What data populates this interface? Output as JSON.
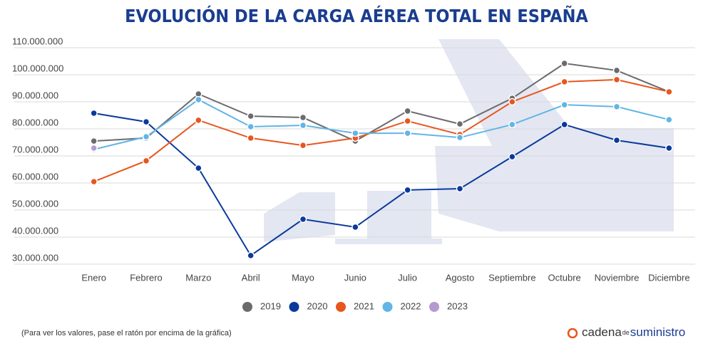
{
  "chart_data": {
    "type": "line",
    "title": "EVOLUCIÓN DE LA CARGA AÉREA TOTAL EN ESPAÑA",
    "categories": [
      "Enero",
      "Febrero",
      "Marzo",
      "Abril",
      "Mayo",
      "Junio",
      "Julio",
      "Agosto",
      "Septiembre",
      "Octubre",
      "Noviembre",
      "Diciembre"
    ],
    "series": [
      {
        "name": "2019",
        "color": "#6b6b6e",
        "values": [
          75500000,
          76600000,
          92900000,
          84700000,
          84200000,
          75500000,
          86600000,
          81800000,
          91300000,
          104200000,
          101600000,
          93700000
        ]
      },
      {
        "name": "2020",
        "color": "#0b3a9b",
        "values": [
          85800000,
          82600000,
          65500000,
          33200000,
          46600000,
          43700000,
          57400000,
          57900000,
          69700000,
          81600000,
          75800000,
          72900000
        ]
      },
      {
        "name": "2021",
        "color": "#e8561e",
        "values": [
          60500000,
          68200000,
          83200000,
          76600000,
          73900000,
          76600000,
          82900000,
          77900000,
          90000000,
          97400000,
          98200000,
          93700000
        ]
      },
      {
        "name": "2022",
        "color": "#62b5e5",
        "values": [
          72400000,
          77100000,
          90800000,
          80800000,
          81300000,
          78400000,
          78400000,
          76800000,
          81600000,
          88900000,
          88200000,
          83400000
        ]
      },
      {
        "name": "2023",
        "color": "#b39bd0",
        "values": [
          72900000,
          null,
          null,
          null,
          null,
          null,
          null,
          null,
          null,
          null,
          null,
          null
        ]
      }
    ],
    "ylim": [
      28000000,
      112000000
    ],
    "yticks": [
      {
        "value": 30000000,
        "label": "30.000.000"
      },
      {
        "value": 40000000,
        "label": "40.000.000"
      },
      {
        "value": 50000000,
        "label": "50.000.000"
      },
      {
        "value": 60000000,
        "label": "60.000.000"
      },
      {
        "value": 70000000,
        "label": "70.000.000"
      },
      {
        "value": 80000000,
        "label": "80.000.000"
      },
      {
        "value": 90000000,
        "label": "90.000.000"
      },
      {
        "value": 100000000,
        "label": "100.000.000"
      },
      {
        "value": 110000000,
        "label": "110.000.000"
      }
    ],
    "grid": true,
    "legend": "bottom",
    "note": "(Para ver los valores, pase el ratón por encima de la gráfica)",
    "brand": [
      "cadena",
      "de",
      "suministro"
    ]
  }
}
